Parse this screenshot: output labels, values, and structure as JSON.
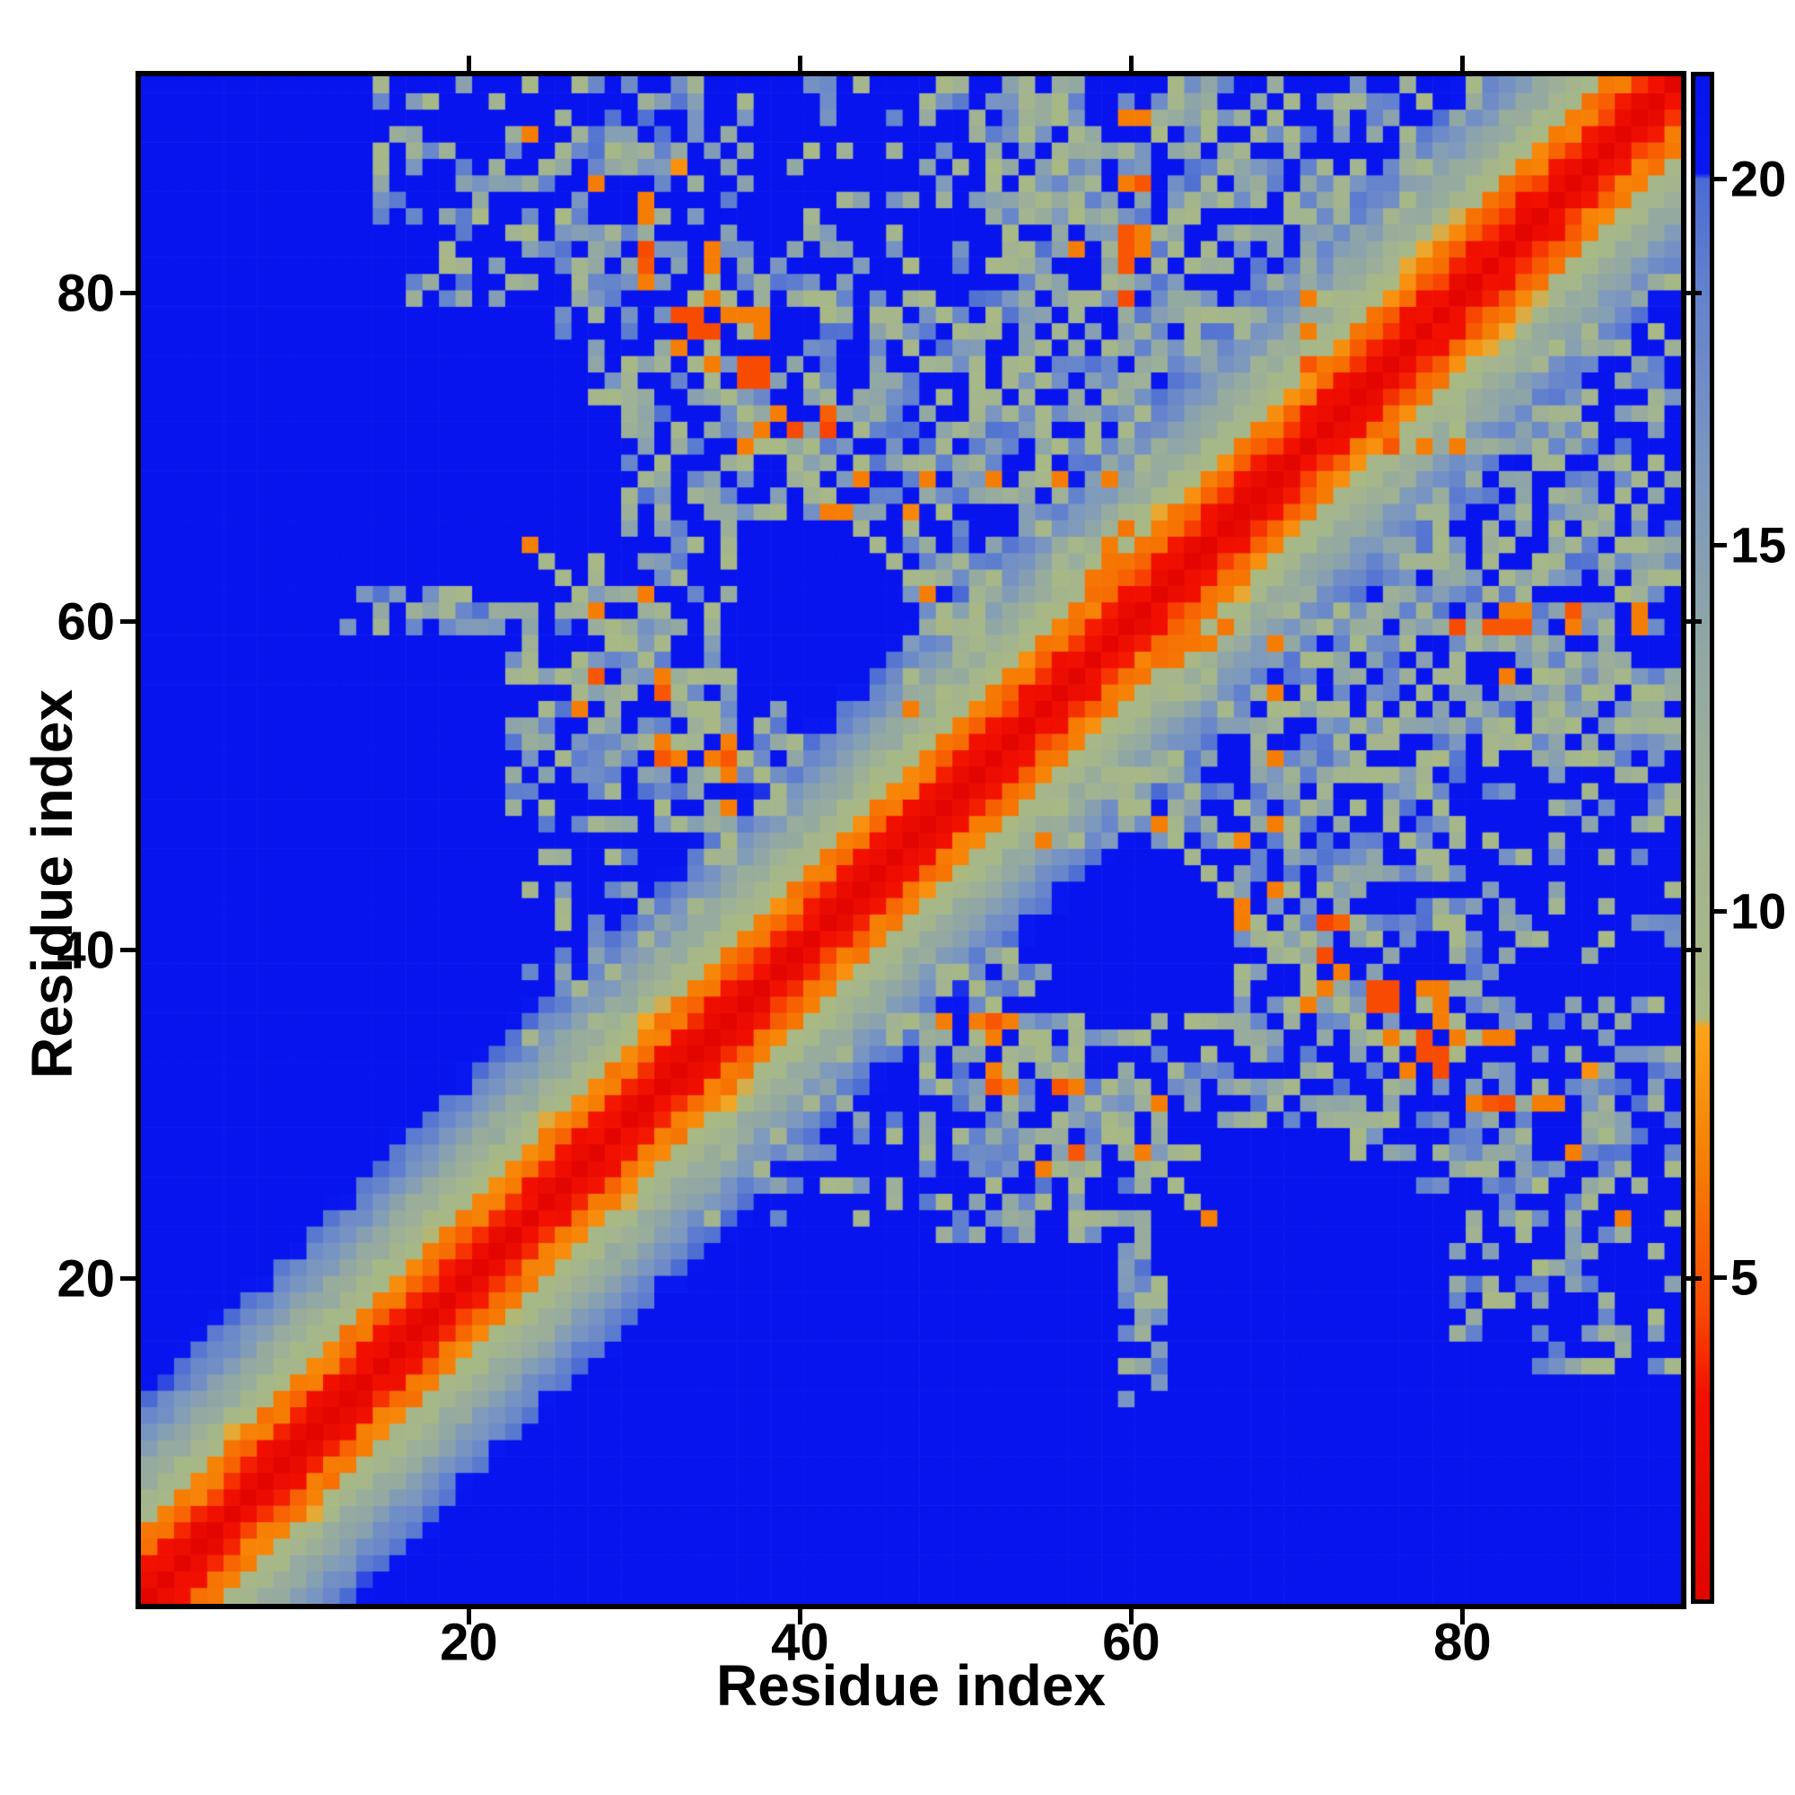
{
  "chart_data": {
    "type": "heatmap",
    "title": "",
    "xlabel": "Residue index",
    "ylabel": "Residue index",
    "n_residues": 93,
    "x_ticks": [
      20,
      40,
      60,
      80
    ],
    "y_ticks": [
      20,
      40,
      60,
      80
    ],
    "grid": false,
    "colorbar": {
      "position": "right",
      "ticks": [
        5,
        10,
        15,
        20
      ],
      "vmin": 0.6,
      "vmax": 21.4
    },
    "colormap_stops": [
      [
        0.6,
        "#e10500"
      ],
      [
        3.4,
        "#f31100"
      ],
      [
        4.5,
        "#f94902"
      ],
      [
        6.5,
        "#f67d04"
      ],
      [
        8.4,
        "#fca31a"
      ],
      [
        8.55,
        "#a9ba83"
      ],
      [
        11.0,
        "#a3b492"
      ],
      [
        13.5,
        "#92a8a4"
      ],
      [
        16.0,
        "#7c98c0"
      ],
      [
        18.5,
        "#6382ce"
      ],
      [
        20.0,
        "#4b6bd5"
      ],
      [
        20.08,
        "#0a19f2"
      ],
      [
        21.4,
        "#0814ee"
      ]
    ],
    "model": {
      "band": {
        "slope": 1.55,
        "intercept": 1.0,
        "noise": 1.6,
        "checker": 0.45,
        "blue_cutoff": 20.0
      },
      "cluster_value_range": [
        8.8,
        19.6
      ],
      "clusters": [
        [
          17,
          27,
          80,
          93,
          0.34
        ],
        [
          26,
          37,
          74,
          93,
          0.5
        ],
        [
          30,
          40,
          60,
          72,
          0.5
        ],
        [
          23,
          40,
          48,
          62,
          0.5
        ],
        [
          37,
          52,
          71,
          82,
          0.52
        ],
        [
          52,
          66,
          71,
          93,
          0.72
        ],
        [
          40,
          52,
          83,
          93,
          0.22
        ],
        [
          46,
          56,
          55,
          71,
          0.62
        ],
        [
          55,
          71,
          58,
          71,
          0.78
        ],
        [
          71,
          82,
          71,
          88,
          0.78
        ],
        [
          72,
          81,
          88,
          93,
          0.34
        ],
        [
          65,
          72,
          84,
          93,
          0.45
        ],
        [
          60,
          72,
          71,
          88,
          0.62
        ],
        [
          15,
          21,
          84,
          93,
          0.3
        ],
        [
          28,
          29,
          48,
          64,
          0.72
        ],
        [
          31,
          32,
          56,
          71,
          0.6
        ],
        [
          34,
          36,
          48,
          56,
          0.75
        ],
        [
          13,
          28,
          60,
          62,
          0.5
        ],
        [
          23,
          40,
          51,
          53,
          0.68
        ],
        [
          30,
          64,
          71,
          73,
          0.6
        ],
        [
          52,
          64,
          89,
          92,
          0.55
        ],
        [
          48,
          60,
          88,
          93,
          0.4
        ],
        [
          41,
          47,
          66,
          71,
          0.55
        ],
        [
          24,
          37,
          33,
          48,
          0.25
        ]
      ],
      "holes": [
        [
          37,
          46,
          56,
          66
        ],
        [
          62,
          66,
          72,
          75
        ],
        [
          24,
          27,
          62,
          74
        ]
      ],
      "chains": [
        {
          "mode": "anti",
          "c": 89,
          "i0": 24,
          "i1": 39,
          "v": 9.3,
          "he": 4,
          "hv": 6.6
        },
        {
          "mode": "anti",
          "c": 110,
          "i0": 33,
          "i1": 53,
          "v": 9.8,
          "he": 5,
          "hv": 6.6
        },
        {
          "mode": "para",
          "c": 22,
          "i0": 48,
          "i1": 70,
          "v": 10.5,
          "he": 0,
          "hv": 0
        },
        {
          "mode": "para",
          "c": 4,
          "i0": 55,
          "i1": 63,
          "v": 6.6,
          "he": 2,
          "hv": 6.2
        },
        {
          "mode": "para",
          "c": 3,
          "i0": 74,
          "i1": 84,
          "v": 6.0,
          "he": 2,
          "hv": 5.2
        }
      ],
      "contacts": [
        [
          24,
          90,
          6.5
        ],
        [
          28,
          87,
          6.5
        ],
        [
          31,
          85,
          6.5
        ],
        [
          31,
          82,
          5.0
        ],
        [
          35,
          82,
          6.5
        ],
        [
          31,
          81,
          6.5
        ],
        [
          35,
          80,
          6.5
        ],
        [
          34,
          78,
          4.6
        ],
        [
          35,
          78,
          4.6
        ],
        [
          35,
          76,
          6.5
        ],
        [
          33,
          88,
          7.5
        ],
        [
          33,
          79,
          4.6
        ],
        [
          36,
          79,
          6.5
        ],
        [
          61,
          91,
          6.5
        ],
        [
          60,
          87,
          6.5
        ],
        [
          61,
          87,
          5.0
        ],
        [
          57,
          83,
          6.5
        ],
        [
          60,
          84,
          5.0
        ],
        [
          61,
          84,
          6.5
        ],
        [
          60,
          83,
          5.0
        ],
        [
          60,
          82,
          5.0
        ],
        [
          61,
          83,
          6.5
        ],
        [
          60,
          80,
          4.6
        ],
        [
          38,
          78,
          6.5
        ],
        [
          37,
          76,
          4.6
        ],
        [
          37,
          75,
          4.6
        ],
        [
          38,
          72,
          6.5
        ],
        [
          37,
          71,
          6.5
        ],
        [
          40,
          72,
          4.6
        ],
        [
          42,
          72,
          4.4
        ],
        [
          42,
          73,
          5.4
        ],
        [
          39,
          73,
          6.5
        ],
        [
          28,
          61,
          6.5
        ],
        [
          27,
          55,
          6.5
        ],
        [
          28,
          57,
          5.0
        ],
        [
          32,
          57,
          6.5
        ],
        [
          32,
          56,
          5.0
        ],
        [
          32,
          53,
          6.5
        ],
        [
          32,
          52,
          5.0
        ],
        [
          33,
          52,
          6.5
        ],
        [
          35,
          52,
          6.5
        ],
        [
          36,
          52,
          5.0
        ],
        [
          36,
          51,
          6.5
        ],
        [
          36,
          49,
          6.5
        ],
        [
          44,
          69,
          6.5
        ],
        [
          48,
          69,
          6.5
        ],
        [
          52,
          69,
          6.5
        ],
        [
          56,
          69,
          6.5
        ],
        [
          59,
          69,
          6.5
        ],
        [
          47,
          55,
          6.5
        ],
        [
          42,
          67,
          6.5
        ],
        [
          47,
          67,
          7.0
        ],
        [
          58,
          63,
          6.2
        ],
        [
          59,
          64,
          6.2
        ],
        [
          59,
          65,
          6.5
        ],
        [
          60,
          66,
          6.2
        ],
        [
          71,
          80,
          6.5
        ],
        [
          71,
          78,
          6.5
        ],
        [
          71,
          76,
          5.0
        ],
        [
          71,
          74,
          6.5
        ],
        [
          72,
          76,
          6.5
        ],
        [
          34,
          79,
          4.6
        ],
        [
          31,
          83,
          4.6
        ],
        [
          31,
          86,
          6.5
        ],
        [
          37,
          79,
          6.5
        ],
        [
          38,
          75,
          4.6
        ],
        [
          38,
          76,
          4.6
        ],
        [
          38,
          79,
          6.5
        ],
        [
          35,
          83,
          6.5
        ],
        [
          60,
          91,
          6.5
        ],
        [
          31,
          62,
          6.5
        ]
      ]
    }
  }
}
